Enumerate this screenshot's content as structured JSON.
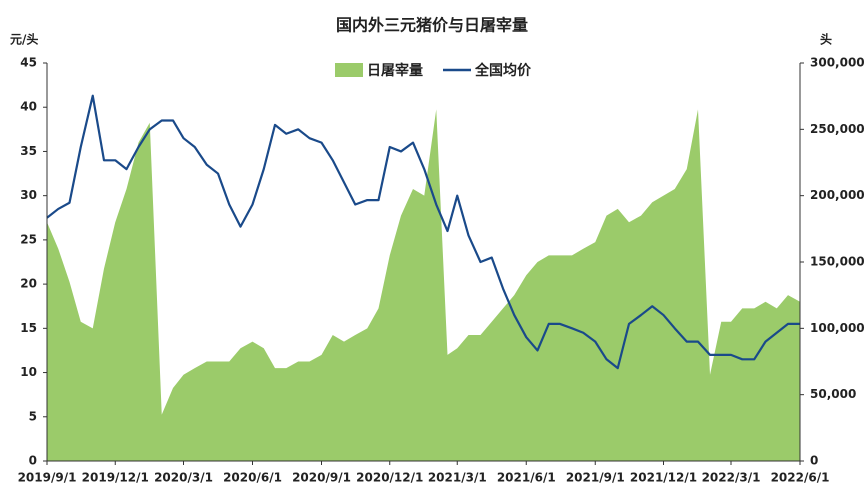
{
  "chart_data": {
    "type": "combo",
    "title": "国内外三元猪价与日屠宰量",
    "ylabel": "元/头",
    "y2label": "头",
    "x": [
      "2019/9/1",
      "2019/9/16",
      "2019/10/1",
      "2019/10/16",
      "2019/11/1",
      "2019/11/16",
      "2019/12/1",
      "2019/12/16",
      "2020/1/1",
      "2020/1/16",
      "2020/2/1",
      "2020/2/16",
      "2020/3/1",
      "2020/3/16",
      "2020/4/1",
      "2020/4/16",
      "2020/5/1",
      "2020/5/16",
      "2020/6/1",
      "2020/6/16",
      "2020/7/1",
      "2020/7/16",
      "2020/8/1",
      "2020/8/16",
      "2020/9/1",
      "2020/9/16",
      "2020/10/1",
      "2020/10/16",
      "2020/11/1",
      "2020/11/16",
      "2020/12/1",
      "2020/12/16",
      "2021/1/1",
      "2021/1/16",
      "2021/2/1",
      "2021/2/16",
      "2021/3/1",
      "2021/3/16",
      "2021/4/1",
      "2021/4/16",
      "2021/5/1",
      "2021/5/16",
      "2021/6/1",
      "2021/6/16",
      "2021/7/1",
      "2021/7/16",
      "2021/8/1",
      "2021/8/16",
      "2021/9/1",
      "2021/9/16",
      "2021/10/1",
      "2021/10/16",
      "2021/11/1",
      "2021/11/16",
      "2021/12/1",
      "2021/12/16",
      "2022/1/1",
      "2022/1/16",
      "2022/2/1",
      "2022/2/16",
      "2022/3/1",
      "2022/3/16",
      "2022/4/1",
      "2022/4/16",
      "2022/5/1",
      "2022/5/16",
      "2022/6/1"
    ],
    "series": [
      {
        "name": "日屠宰量",
        "type": "area",
        "axis": "y2",
        "color": "#9bcb6a",
        "values": [
          180000,
          160000,
          135000,
          105000,
          100000,
          145000,
          180000,
          205000,
          240000,
          255000,
          35000,
          55000,
          65000,
          70000,
          75000,
          75000,
          75000,
          85000,
          90000,
          85000,
          70000,
          70000,
          75000,
          75000,
          80000,
          95000,
          90000,
          95000,
          100000,
          115000,
          155000,
          185000,
          205000,
          200000,
          265000,
          80000,
          85000,
          95000,
          95000,
          105000,
          115000,
          125000,
          140000,
          150000,
          155000,
          155000,
          155000,
          160000,
          165000,
          185000,
          190000,
          180000,
          185000,
          195000,
          200000,
          205000,
          220000,
          265000,
          65000,
          105000,
          105000,
          115000,
          115000,
          120000,
          115000,
          125000,
          120000
        ]
      },
      {
        "name": "全国均价",
        "type": "line",
        "color": "#1a4a8a",
        "values": [
          27.5,
          28.5,
          29.2,
          35.5,
          41.3,
          34,
          34,
          33,
          35.5,
          37.5,
          38.5,
          38.5,
          36.5,
          35.5,
          33.5,
          32.5,
          29,
          26.5,
          29,
          33,
          38,
          37,
          37.5,
          36.5,
          36,
          34,
          31.5,
          29,
          29.5,
          29.5,
          35.5,
          35,
          36,
          33,
          29,
          26,
          30,
          25.5,
          22.5,
          23,
          19.5,
          16.5,
          14,
          12.5,
          15.5,
          15.5,
          15,
          14.5,
          13.5,
          11.5,
          10.5,
          15.5,
          16.5,
          17.5,
          16.5,
          15,
          13.5,
          13.5,
          12,
          12,
          12,
          11.5,
          11.5,
          13.5,
          14.5,
          15.5,
          15.5
        ]
      }
    ],
    "xlim": [
      "2019/9/1",
      "2022/6/1"
    ],
    "xticks": [
      "2019/9/1",
      "2019/12/1",
      "2020/3/1",
      "2020/6/1",
      "2020/9/1",
      "2020/12/1",
      "2021/3/1",
      "2021/6/1",
      "2021/9/1",
      "2021/12/1",
      "2022/3/1",
      "2022/6/1"
    ],
    "ylim": [
      0,
      45
    ],
    "yticks": [
      0,
      5,
      10,
      15,
      20,
      25,
      30,
      35,
      40,
      45
    ],
    "y2lim": [
      0,
      300000
    ],
    "y2ticks": [
      0,
      {
        "value": 50000,
        "label": "50,000"
      },
      {
        "value": 100000,
        "label": "100,000"
      },
      {
        "value": 150000,
        "label": "150,000"
      },
      {
        "value": 200000,
        "label": "200,000"
      },
      {
        "value": 250000,
        "label": "250,000"
      },
      {
        "value": 300000,
        "label": "300,000"
      }
    ],
    "legend": "top"
  }
}
